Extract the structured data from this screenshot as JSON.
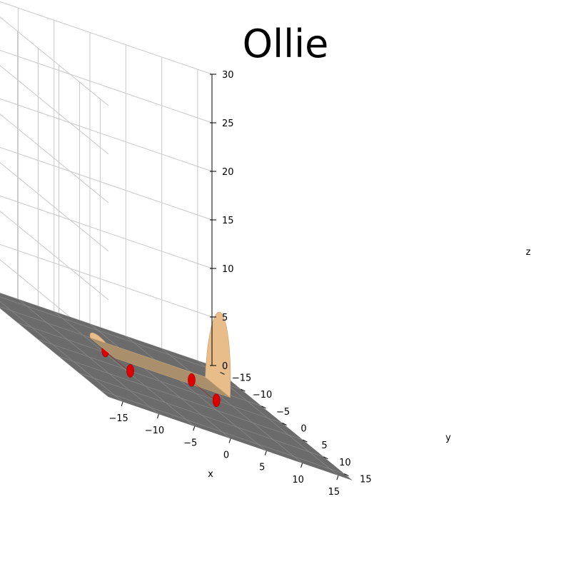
{
  "chart_data": {
    "type": "3d-surface",
    "title": "Ollie",
    "xlabel": "x",
    "ylabel": "y",
    "zlabel": "z",
    "xlim": [
      -17,
      17
    ],
    "ylim": [
      -17,
      17
    ],
    "zlim": [
      0,
      30
    ],
    "xticks": [
      -15,
      -10,
      -5,
      0,
      5,
      10,
      15
    ],
    "yticks": [
      -15,
      -10,
      -5,
      0,
      5,
      10,
      15
    ],
    "zticks": [
      0,
      5,
      10,
      15,
      20,
      25,
      30
    ],
    "grid": true,
    "colors": {
      "ground": "#6b6b6b",
      "deck_top": "#a98f6c",
      "deck_nose": "#e8bd8a",
      "deck_edge": "#c9a070",
      "wheels": "#dd0000",
      "gridline": "#c8c8c8"
    },
    "objects": [
      {
        "name": "ground",
        "x_range": [
          -17,
          17
        ],
        "y_range": [
          -17,
          17
        ],
        "z": 0
      },
      {
        "name": "deck",
        "x_range": [
          -8,
          8
        ],
        "y_range": [
          -3,
          3
        ],
        "z": 1.4
      },
      {
        "name": "front-wheels",
        "x": 6,
        "y_range": [
          -3,
          3
        ],
        "z": 0.6
      },
      {
        "name": "rear-wheels",
        "x": -6,
        "y_range": [
          -3,
          3
        ],
        "z": 0.6
      }
    ]
  }
}
